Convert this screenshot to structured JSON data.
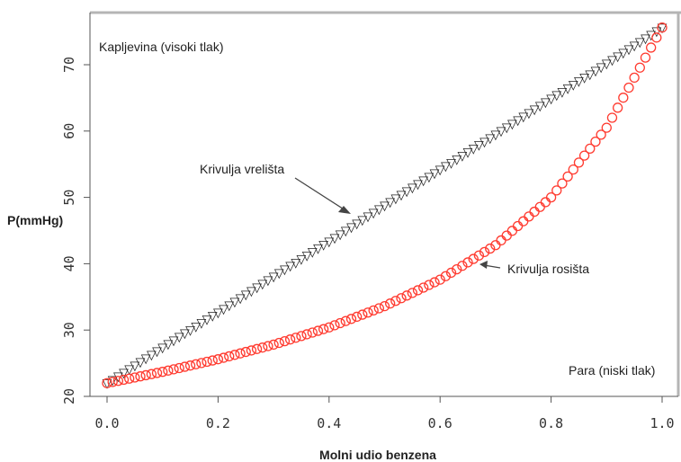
{
  "chart_data": {
    "type": "scatter",
    "title": "",
    "xlabel": "Molni udio benzena",
    "ylabel": "P(mmHg)",
    "xlim": [
      0,
      1
    ],
    "ylim": [
      20,
      76
    ],
    "x_ticks": [
      "0.0",
      "0.2",
      "0.4",
      "0.6",
      "0.8",
      "1.0"
    ],
    "y_ticks": [
      "20",
      "30",
      "40",
      "50",
      "60",
      "70"
    ],
    "annotations": {
      "liquid": "Kapljevina (visoki tlak)",
      "vapor": "Para (niski tlak)",
      "boiling": "Krivulja vrelišta",
      "dew": "Krivulja rosišta"
    },
    "series": [
      {
        "marker": "bubble-marker",
        "color": "#222222",
        "x": [
          0.0,
          0.1,
          0.2,
          0.3,
          0.4,
          0.5,
          0.6,
          0.7,
          0.8,
          0.9,
          1.0
        ],
        "y": [
          22.0,
          27.4,
          32.7,
          38.1,
          43.4,
          48.8,
          54.2,
          59.5,
          64.9,
          70.2,
          75.6
        ]
      },
      {
        "marker": "dew-marker",
        "color": "#ff3b30",
        "x": [
          0.0,
          0.1,
          0.2,
          0.3,
          0.4,
          0.5,
          0.6,
          0.7,
          0.8,
          0.9,
          1.0
        ],
        "y": [
          22.0,
          23.7,
          25.6,
          27.8,
          30.4,
          33.6,
          37.6,
          42.8,
          50.0,
          60.5,
          75.6
        ]
      }
    ]
  }
}
